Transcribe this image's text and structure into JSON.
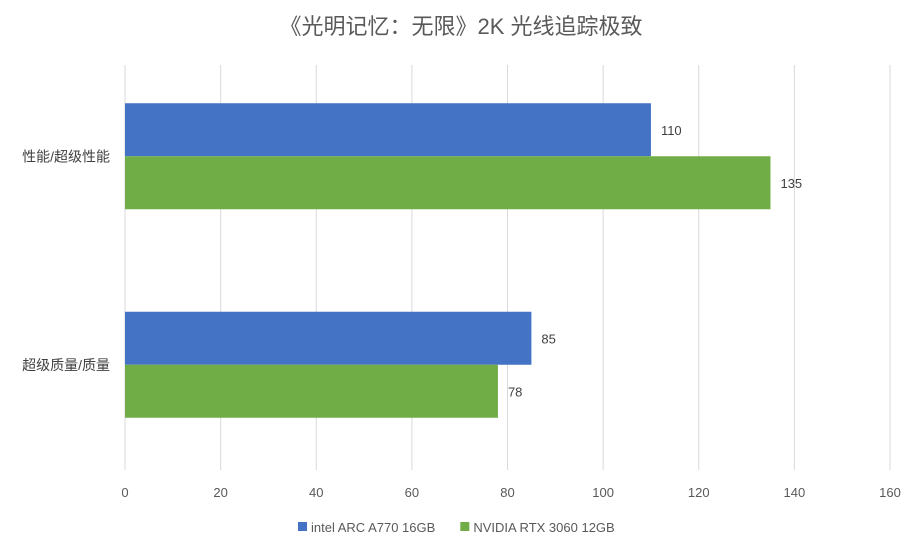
{
  "chart_data": {
    "type": "bar",
    "orientation": "horizontal",
    "title": "《光明记忆：无限》2K 光线追踪极致",
    "categories": [
      "性能/超级性能",
      "超级质量/质量"
    ],
    "series": [
      {
        "name": "intel ARC A770 16GB",
        "color": "#4472C4",
        "values": [
          110,
          85
        ]
      },
      {
        "name": "NVIDIA RTX 3060 12GB",
        "color": "#70AD47",
        "values": [
          135,
          78
        ]
      }
    ],
    "xlim": [
      0,
      160
    ],
    "xticks": [
      0,
      20,
      40,
      60,
      80,
      100,
      120,
      140,
      160
    ],
    "grid": true,
    "legend": "bottom",
    "data_labels": true
  }
}
